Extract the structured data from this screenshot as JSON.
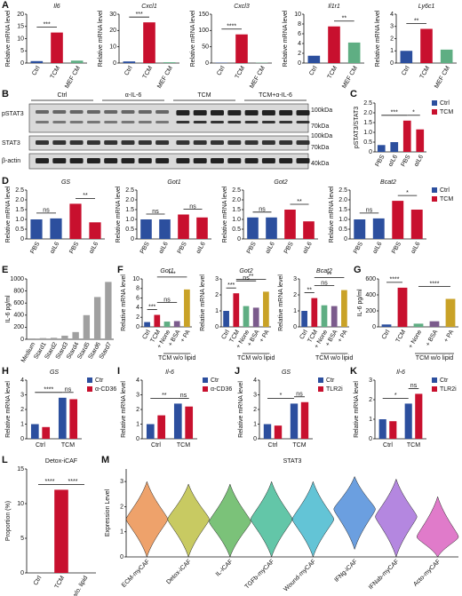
{
  "chart_data": [
    {
      "type": "bar",
      "panel": "A",
      "title": "Il6",
      "ylabel": "Relative mRNA level",
      "categories": [
        "Ctrl",
        "TCM",
        "MEF CM"
      ],
      "values": [
        0.8,
        12.5,
        1.0
      ],
      "colors": [
        "#2c4f9e",
        "#c8102e",
        "#5fae83"
      ],
      "ylim": [
        0,
        20
      ],
      "yticks": [
        0,
        5,
        10,
        15,
        20
      ],
      "annotations": [
        {
          "text": "***",
          "between": [
            0,
            1
          ]
        }
      ]
    },
    {
      "type": "bar",
      "title": "Cxcl1",
      "ylabel": "Relative mRNA level",
      "categories": [
        "Ctrl",
        "TCM",
        "MEF CM"
      ],
      "values": [
        1,
        25,
        0.5
      ],
      "colors": [
        "#2c4f9e",
        "#c8102e",
        "#5fae83"
      ],
      "ylim": [
        0,
        30
      ],
      "yticks": [
        0,
        10,
        20,
        30
      ],
      "annotations": [
        {
          "text": "***",
          "between": [
            0,
            1
          ]
        }
      ]
    },
    {
      "type": "bar",
      "title": "Cxcl3",
      "ylabel": "Relative mRNA level",
      "categories": [
        "Ctrl",
        "TCM",
        "MEF CM"
      ],
      "values": [
        1,
        88,
        1
      ],
      "colors": [
        "#2c4f9e",
        "#c8102e",
        "#5fae83"
      ],
      "ylim": [
        0,
        150
      ],
      "yticks": [
        0,
        50,
        100,
        150
      ],
      "annotations": [
        {
          "text": "****",
          "between": [
            0,
            1
          ]
        }
      ]
    },
    {
      "type": "bar",
      "title": "Il1r1",
      "ylabel": "Relative mRNA level",
      "categories": [
        "Ctrl",
        "TCM",
        "MEF CM"
      ],
      "values": [
        1.5,
        7.5,
        4.2
      ],
      "colors": [
        "#2c4f9e",
        "#c8102e",
        "#5fae83"
      ],
      "ylim": [
        0,
        10
      ],
      "yticks": [
        0,
        2,
        4,
        6,
        8,
        10
      ],
      "annotations": [
        {
          "text": "**",
          "between": [
            1,
            2
          ]
        }
      ]
    },
    {
      "type": "bar",
      "title": "Ly6c1",
      "ylabel": "Relative mRNA level",
      "categories": [
        "Ctrl",
        "TCM",
        "MEF CM"
      ],
      "values": [
        1.0,
        2.8,
        1.1
      ],
      "colors": [
        "#2c4f9e",
        "#c8102e",
        "#5fae83"
      ],
      "ylim": [
        0,
        4
      ],
      "yticks": [
        0,
        1,
        2,
        3,
        4
      ],
      "annotations": [
        {
          "text": "**",
          "between": [
            0,
            1
          ]
        }
      ]
    },
    {
      "type": "bar",
      "panel": "C",
      "ylabel": "pSTAT3/STAT3",
      "categories": [
        "PBS",
        "αIL6",
        "PBS",
        "αIL6"
      ],
      "values": [
        0.35,
        0.5,
        1.6,
        1.15
      ],
      "colors": [
        "#2c4f9e",
        "#2c4f9e",
        "#c8102e",
        "#c8102e"
      ],
      "legend": [
        {
          "name": "Ctrl",
          "color": "#2c4f9e"
        },
        {
          "name": "TCM",
          "color": "#c8102e"
        }
      ],
      "ylim": [
        0,
        2.5
      ],
      "yticks": [
        0,
        0.5,
        {
          "value": 1,
          "label": "1.0"
        },
        1.5,
        {
          "value": 2,
          "label": "2.0"
        },
        2.5
      ],
      "annotations": [
        {
          "text": "***",
          "between": [
            0,
            2
          ]
        },
        {
          "text": "*",
          "between": [
            2,
            3
          ]
        }
      ]
    },
    {
      "type": "bar",
      "panel": "D",
      "title": "GS",
      "ylabel": "Relative mRNA level",
      "categories": [
        "PBS",
        "αIL6",
        "PBS",
        "αIL6"
      ],
      "values": [
        1.0,
        1.05,
        1.8,
        0.85
      ],
      "colors": [
        "#2c4f9e",
        "#2c4f9e",
        "#c8102e",
        "#c8102e"
      ],
      "ylim": [
        0,
        2.5
      ],
      "yticks": [
        0,
        0.5,
        {
          "value": 1,
          "label": "1.0"
        },
        1.5,
        {
          "value": 2,
          "label": "2.0"
        },
        2.5
      ],
      "annotations": [
        {
          "text": "ns",
          "between": [
            0,
            1
          ]
        },
        {
          "text": "**",
          "between": [
            2,
            3
          ]
        }
      ]
    },
    {
      "type": "bar",
      "title": "Got1",
      "ylabel": "Relative mRNA level",
      "categories": [
        "PBS",
        "αIL6",
        "PBS",
        "αIL6"
      ],
      "values": [
        1.0,
        1.0,
        1.25,
        1.1
      ],
      "colors": [
        "#2c4f9e",
        "#2c4f9e",
        "#c8102e",
        "#c8102e"
      ],
      "ylim": [
        0,
        2.5
      ],
      "yticks": [
        0,
        0.5,
        {
          "value": 1,
          "label": "1.0"
        },
        1.5,
        {
          "value": 2,
          "label": "2.0"
        },
        2.5
      ],
      "annotations": [
        {
          "text": "ns",
          "between": [
            0,
            1
          ]
        },
        {
          "text": "ns",
          "between": [
            2,
            3
          ]
        }
      ]
    },
    {
      "type": "bar",
      "title": "Got2",
      "ylabel": "Relative mRNA level",
      "categories": [
        "PBS",
        "αIL6",
        "PBS",
        "αIL6"
      ],
      "values": [
        1.1,
        1.1,
        1.5,
        0.9
      ],
      "colors": [
        "#2c4f9e",
        "#2c4f9e",
        "#c8102e",
        "#c8102e"
      ],
      "ylim": [
        0,
        2.5
      ],
      "yticks": [
        0,
        0.5,
        {
          "value": 1,
          "label": "1.0"
        },
        1.5,
        {
          "value": 2,
          "label": "2.0"
        },
        2.5
      ],
      "annotations": [
        {
          "text": "ns",
          "between": [
            0,
            1
          ]
        },
        {
          "text": "**",
          "between": [
            2,
            3
          ]
        }
      ]
    },
    {
      "type": "bar",
      "title": "Bcat2",
      "ylabel": "Relative mRNA level",
      "categories": [
        "PBS",
        "αIL6",
        "PBS",
        "αIL6"
      ],
      "values": [
        1.0,
        1.05,
        1.95,
        1.5
      ],
      "colors": [
        "#2c4f9e",
        "#2c4f9e",
        "#c8102e",
        "#c8102e"
      ],
      "legend": [
        {
          "name": "Ctrl",
          "color": "#2c4f9e"
        },
        {
          "name": "TCM",
          "color": "#c8102e"
        }
      ],
      "ylim": [
        0,
        2.5
      ],
      "yticks": [
        0,
        0.5,
        {
          "value": 1,
          "label": "1.0"
        },
        1.5,
        {
          "value": 2,
          "label": "2.0"
        },
        2.5
      ],
      "annotations": [
        {
          "text": "ns",
          "between": [
            0,
            1
          ]
        },
        {
          "text": "*",
          "between": [
            2,
            3
          ]
        }
      ]
    },
    {
      "type": "bar",
      "panel": "E",
      "ylabel": "IL-6 pg/ml",
      "categories": [
        "Medium",
        "Stard1",
        "Stard2",
        "Stard3",
        "Stard4",
        "Stard5",
        "Stard6",
        "Stard7"
      ],
      "values": [
        15,
        20,
        25,
        60,
        120,
        400,
        700,
        950
      ],
      "colors": [
        "#a0a0a0",
        "#a0a0a0",
        "#a0a0a0",
        "#a0a0a0",
        "#a0a0a0",
        "#a0a0a0",
        "#a0a0a0",
        "#a0a0a0"
      ],
      "ylim": [
        0,
        1000
      ],
      "yticks": [
        0,
        200,
        400,
        600,
        800,
        1000
      ]
    },
    {
      "type": "bar",
      "panel": "F",
      "title": "Got1",
      "ylabel": "Relative mRNA level",
      "categories": [
        "Ctrl",
        "TCM",
        "+ None",
        "+ BSA",
        "+ PA"
      ],
      "values": [
        1,
        2.5,
        1.1,
        1.2,
        7.8
      ],
      "colors": [
        "#2c4f9e",
        "#c8102e",
        "#5fae83",
        "#7b5b8c",
        "#c9a227"
      ],
      "ylim": [
        0,
        10
      ],
      "yticks": [
        0,
        2,
        4,
        6,
        8,
        10
      ],
      "group_label": {
        "text": "TCM w/o lipid",
        "span": [
          2,
          4
        ]
      },
      "annotations": [
        {
          "text": "***",
          "between": [
            0,
            1
          ]
        },
        {
          "text": "ns",
          "between": [
            1,
            3
          ]
        },
        {
          "text": "***",
          "between": [
            1,
            4
          ]
        }
      ]
    },
    {
      "type": "bar",
      "title": "Got2",
      "ylabel": "Relative mRNA level",
      "categories": [
        "Ctrl",
        "TCM",
        "+ None",
        "+ BSA",
        "+ PA"
      ],
      "values": [
        1,
        2.1,
        1.3,
        1.2,
        2.2
      ],
      "colors": [
        "#2c4f9e",
        "#c8102e",
        "#5fae83",
        "#7b5b8c",
        "#c9a227"
      ],
      "ylim": [
        0,
        3
      ],
      "yticks": [
        0,
        1,
        2,
        3
      ],
      "group_label": {
        "text": "TCM w/o lipid",
        "span": [
          2,
          4
        ]
      },
      "annotations": [
        {
          "text": "***",
          "between": [
            0,
            1
          ]
        },
        {
          "text": "ns",
          "between": [
            1,
            3
          ]
        },
        {
          "text": "**",
          "between": [
            1,
            4
          ]
        }
      ]
    },
    {
      "type": "bar",
      "title": "Bcat2",
      "ylabel": "Relative mRNA level",
      "categories": [
        "Ctrl",
        "TCM",
        "+ None",
        "+ BSA",
        "+ PA"
      ],
      "values": [
        1,
        1.8,
        1.35,
        1.3,
        2.3
      ],
      "colors": [
        "#2c4f9e",
        "#c8102e",
        "#5fae83",
        "#7b5b8c",
        "#c9a227"
      ],
      "ylim": [
        0,
        3
      ],
      "yticks": [
        0,
        1,
        2,
        3
      ],
      "group_label": {
        "text": "TCM w/o lipid",
        "span": [
          2,
          4
        ]
      },
      "annotations": [
        {
          "text": "**",
          "between": [
            0,
            1
          ]
        },
        {
          "text": "ns",
          "between": [
            1,
            3
          ]
        },
        {
          "text": "**",
          "between": [
            1,
            4
          ]
        }
      ]
    },
    {
      "type": "bar",
      "panel": "G",
      "ylabel": "IL-6 pg/ml",
      "categories": [
        "Ctrl",
        "TCM",
        "+ None",
        "+ BSA",
        "+ PA"
      ],
      "values": [
        30,
        490,
        40,
        70,
        350
      ],
      "colors": [
        "#2c4f9e",
        "#c8102e",
        "#5fae83",
        "#7b5b8c",
        "#c9a227"
      ],
      "ylim": [
        0,
        600
      ],
      "yticks": [
        0,
        200,
        400,
        600
      ],
      "group_label": {
        "text": "TCM w/o lipid",
        "span": [
          2,
          4
        ]
      },
      "annotations": [
        {
          "text": "****",
          "between": [
            0,
            1
          ]
        },
        {
          "text": "****",
          "between": [
            2,
            4
          ]
        }
      ]
    },
    {
      "type": "grouped_bar",
      "panel": "H",
      "title": "GS",
      "ylabel": "Relative mRNA level",
      "categories": [
        "Ctrl",
        "TCM"
      ],
      "series": [
        {
          "name": "Ctr",
          "color": "#2c4f9e",
          "values": [
            1.0,
            2.8
          ]
        },
        {
          "name": "α-CD36",
          "color": "#c8102e",
          "values": [
            0.8,
            2.7
          ]
        }
      ],
      "ylim": [
        0,
        4
      ],
      "yticks": [
        0,
        1,
        2,
        3,
        4
      ],
      "annotations": [
        {
          "text": "****",
          "between": [
            0,
            2
          ]
        },
        {
          "text": "ns",
          "between": [
            2,
            3
          ]
        }
      ]
    },
    {
      "type": "grouped_bar",
      "panel": "I",
      "title": "Il-6",
      "ylabel": "Relative mRNA level",
      "categories": [
        "Ctrl",
        "TCM"
      ],
      "series": [
        {
          "name": "Ctr",
          "color": "#2c4f9e",
          "values": [
            1.0,
            2.4
          ]
        },
        {
          "name": "α-CD36",
          "color": "#c8102e",
          "values": [
            1.6,
            2.2
          ]
        }
      ],
      "ylim": [
        0,
        4
      ],
      "yticks": [
        0,
        1,
        2,
        3,
        4
      ],
      "annotations": [
        {
          "text": "**",
          "between": [
            0,
            2
          ]
        },
        {
          "text": "ns",
          "between": [
            2,
            3
          ]
        }
      ]
    },
    {
      "type": "grouped_bar",
      "panel": "J",
      "title": "GS",
      "ylabel": "Relative mRNA level",
      "categories": [
        "Ctrl",
        "TCM"
      ],
      "series": [
        {
          "name": "Ctr",
          "color": "#2c4f9e",
          "values": [
            1.0,
            2.4
          ]
        },
        {
          "name": "TLR2i",
          "color": "#c8102e",
          "values": [
            0.9,
            2.5
          ]
        }
      ],
      "ylim": [
        0,
        4
      ],
      "yticks": [
        0,
        1,
        2,
        3,
        4
      ],
      "annotations": [
        {
          "text": "*",
          "between": [
            0,
            2
          ]
        },
        {
          "text": "ns",
          "between": [
            2,
            3
          ]
        }
      ]
    },
    {
      "type": "grouped_bar",
      "panel": "K",
      "title": "Il-6",
      "ylabel": "Relative mRNA level",
      "categories": [
        "Ctrl",
        "TCM"
      ],
      "series": [
        {
          "name": "Ctr",
          "color": "#2c4f9e",
          "values": [
            1.0,
            1.8
          ]
        },
        {
          "name": "TLR2i",
          "color": "#c8102e",
          "values": [
            0.9,
            2.3
          ]
        }
      ],
      "ylim": [
        0,
        3
      ],
      "yticks": [
        0,
        1,
        2,
        3
      ],
      "annotations": [
        {
          "text": "*",
          "between": [
            0,
            2
          ]
        },
        {
          "text": "ns",
          "between": [
            2,
            3
          ]
        }
      ]
    },
    {
      "type": "bar",
      "panel": "L",
      "title": "Detox-iCAF",
      "ylabel": "Proportion (%)",
      "categories": [
        "Ctrl",
        "TCM",
        "TCM w/o. lipid"
      ],
      "values": [
        0,
        12,
        0
      ],
      "colors": [
        "#2c4f9e",
        "#c8102e",
        "#5fae83"
      ],
      "ylim": [
        0,
        15
      ],
      "yticks": [
        0,
        5,
        10,
        15
      ],
      "annotations": [
        {
          "text": "****",
          "between": [
            0,
            1
          ]
        },
        {
          "text": "****",
          "between": [
            1,
            2
          ]
        }
      ]
    },
    {
      "type": "violin",
      "panel": "M",
      "title": "STAT3",
      "ylabel": "Expression Level",
      "categories": [
        "ECM-myCAF",
        "Detox-iCAF",
        "IL-iCAF",
        "TGFb-myCAF",
        "Wound-myCAF",
        "IFNg-iCAF",
        "IFNab-myCAF",
        "Acto-myCAF"
      ],
      "values": [
        1.5,
        1.5,
        1.4,
        1.5,
        1.5,
        1.9,
        1.6,
        0.8
      ],
      "mins": [
        0,
        0,
        0,
        0,
        0,
        0.3,
        0,
        0
      ],
      "maxs": [
        3.0,
        2.9,
        2.9,
        3.0,
        3.0,
        3.2,
        3.1,
        2.4
      ],
      "colors": [
        "#e8833a",
        "#b5b82e",
        "#4fae4c",
        "#2fb38b",
        "#2fb0c8",
        "#3a7fd6",
        "#9b5fd6",
        "#d64fb8"
      ],
      "ylim": [
        0,
        3.5
      ],
      "yticks": [
        0,
        1,
        2,
        3
      ]
    }
  ],
  "blot": {
    "panel": "B",
    "groups": [
      "Ctrl",
      "α-IL-6",
      "TCM",
      "TCM+α-IL-6"
    ],
    "rows": [
      "pSTAT3",
      "STAT3",
      "β-actin"
    ],
    "markers": [
      "100kDa",
      "70kDa",
      "100kDa",
      "70kDa",
      "40kDa"
    ]
  }
}
